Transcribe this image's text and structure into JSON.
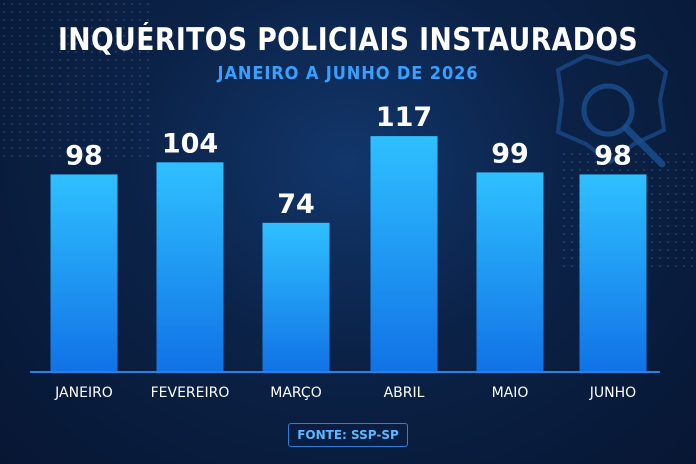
{
  "title": "INQUÉRITOS POLICIAIS INSTAURADOS",
  "subtitle": "JANEIRO A JUNHO DE 2026",
  "source": "FONTE: SSP-SP",
  "icon": "police-badge-magnifier-icon",
  "colors": {
    "background": "#0b2247",
    "bar_top": "#2fc0ff",
    "bar_bottom": "#1172e6",
    "subtitle": "#3aa0ff",
    "axis": "#2a82e0"
  },
  "chart_data": {
    "type": "bar",
    "categories": [
      "JANEIRO",
      "FEVEREIRO",
      "MARÇO",
      "ABRIL",
      "MAIO",
      "JUNHO"
    ],
    "values": [
      98,
      104,
      74,
      117,
      99,
      98
    ],
    "title": "INQUÉRITOS POLICIAIS INSTAURADOS",
    "subtitle": "JANEIRO A JUNHO DE 2026",
    "ylim": [
      0,
      125
    ],
    "grid": false,
    "data_labels": true
  }
}
